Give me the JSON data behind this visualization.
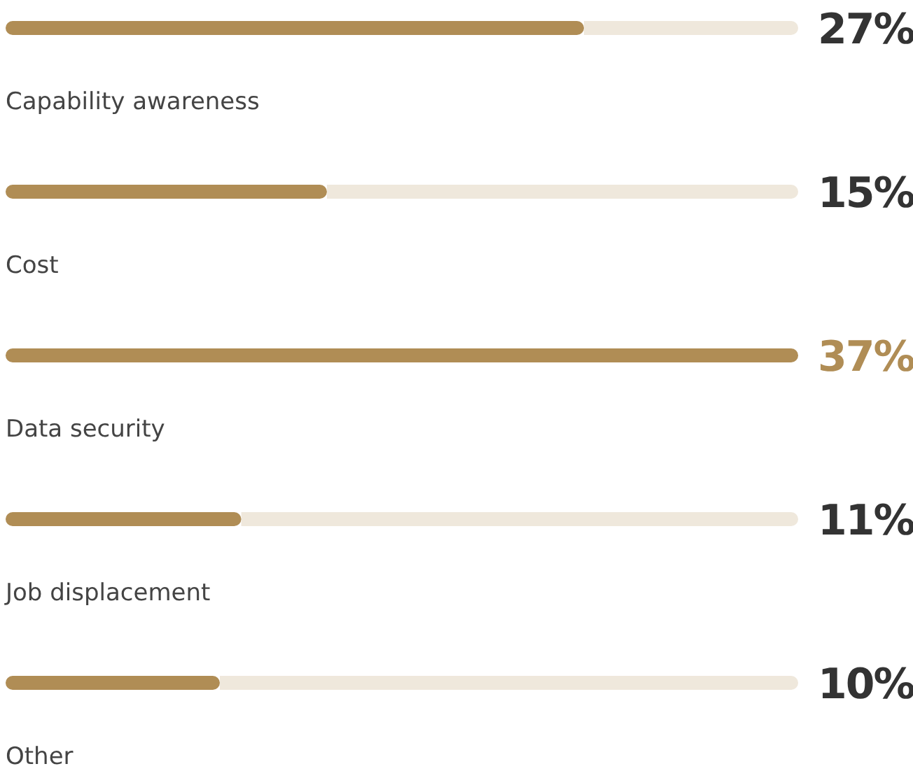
{
  "chart_data": {
    "type": "bar",
    "orientation": "horizontal",
    "categories": [
      "Capability awareness",
      "Cost",
      "Data security",
      "Job displacement",
      "Other"
    ],
    "values": [
      27,
      15,
      37,
      11,
      10
    ],
    "color": "#b08d55",
    "value_labels": [
      "27%",
      "15%",
      "37%",
      "11%",
      "10%"
    ]
  }
}
